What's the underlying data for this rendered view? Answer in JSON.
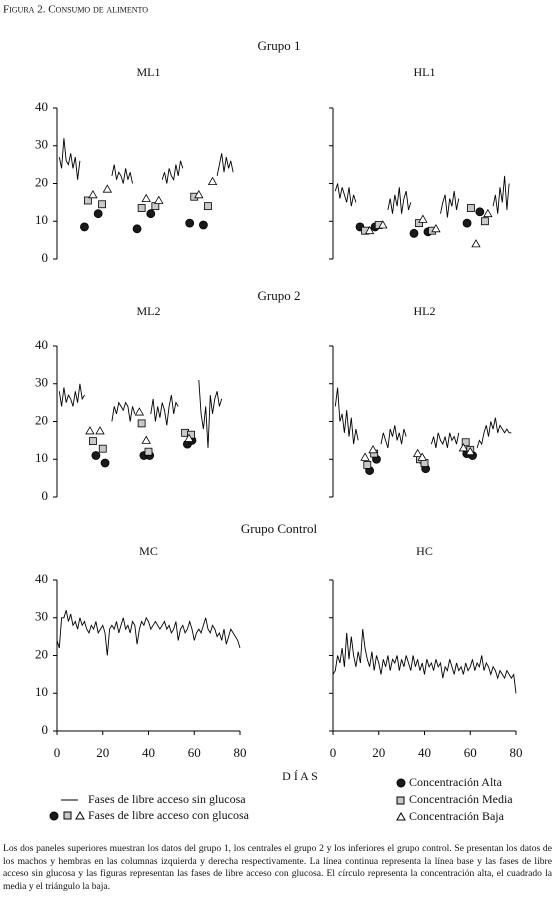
{
  "figure_title": "Figura 2. Consumo de alimento",
  "groups": [
    "Grupo 1",
    "Grupo 2",
    "Grupo Control"
  ],
  "x_label": "D Í A S",
  "legend": {
    "line": "Fases de libre acceso sin glucosa",
    "markers": "Fases de libre acceso con glucosa",
    "alta": "Concentración Alta",
    "media": "Concentración Media",
    "baja": "Concentración Baja"
  },
  "caption": "Los dos paneles superiores muestran los datos del grupo 1, los centrales el grupo 2 y los inferiores el grupo control. Se presentan los datos de los machos y hembras en las columnas izquierda y derecha respectivamente. La línea continua representa la línea base y las fases de libre acceso sin glucosa y las figuras representan las fases de libre acceso con glucosa. El círculo representa la concentración alta, el cuadrado la media y el triángulo la baja.",
  "chart_data": [
    {
      "type": "line",
      "title": "ML1",
      "xlim": [
        0,
        80
      ],
      "ylim": [
        0,
        40
      ],
      "yticks": [
        0,
        10,
        20,
        30,
        40
      ],
      "color": "#000000",
      "x": [
        1,
        2,
        3,
        4,
        5,
        6,
        7,
        8,
        9,
        10,
        null,
        24,
        25,
        26,
        27,
        28,
        29,
        30,
        31,
        32,
        33,
        null,
        46,
        47,
        48,
        49,
        50,
        51,
        52,
        53,
        54,
        55,
        null,
        70,
        71,
        72,
        73,
        74,
        75,
        76,
        77
      ],
      "values": [
        27,
        24,
        32,
        26,
        25,
        28,
        24,
        27,
        21,
        26,
        null,
        22,
        25,
        21,
        23,
        22,
        20,
        24,
        21,
        23,
        20,
        null,
        21,
        23,
        20,
        24,
        22,
        21,
        25,
        22,
        26,
        24,
        null,
        22,
        25,
        28,
        23,
        27,
        24,
        26,
        23
      ],
      "markers": [
        {
          "marker": "circle",
          "color": "#1a1a1a",
          "x": [
            12,
            18,
            35,
            41,
            58,
            64
          ],
          "values": [
            8.5,
            12,
            8,
            12,
            9.5,
            9
          ]
        },
        {
          "marker": "square",
          "color": "#c8c8c8",
          "x": [
            13.5,
            19.7,
            37,
            43,
            60,
            66
          ],
          "values": [
            15.5,
            14.5,
            13.5,
            14,
            16.5,
            14
          ]
        },
        {
          "marker": "triangle",
          "color": "#ffffff",
          "x": [
            15.7,
            22,
            39,
            44.5,
            62,
            68
          ],
          "values": [
            17,
            18.5,
            16,
            15.5,
            17,
            20.5
          ]
        }
      ]
    },
    {
      "type": "line",
      "title": "HL1",
      "xlim": [
        0,
        80
      ],
      "ylim": [
        0,
        40
      ],
      "yticks": [
        0,
        10,
        20,
        30,
        40
      ],
      "color": "#000000",
      "x": [
        1,
        2,
        3,
        4,
        5,
        6,
        7,
        8,
        9,
        10,
        null,
        24,
        25,
        26,
        27,
        28,
        29,
        30,
        31,
        32,
        33,
        34,
        null,
        47,
        48,
        49,
        50,
        51,
        52,
        53,
        54,
        55,
        null,
        70,
        71,
        72,
        73,
        74,
        75,
        76,
        77
      ],
      "values": [
        18,
        20,
        16,
        19,
        17,
        15,
        19,
        14,
        17,
        15,
        null,
        13,
        16,
        12,
        17,
        14,
        19,
        12,
        16,
        18,
        13,
        15,
        null,
        12,
        15,
        17,
        11,
        16,
        14,
        18,
        13,
        16,
        null,
        14,
        17,
        12,
        19,
        15,
        22,
        13,
        20
      ],
      "markers": [
        {
          "marker": "circle",
          "color": "#1a1a1a",
          "x": [
            11.8,
            18.4,
            35.4,
            41.5,
            58.6,
            64.2
          ],
          "values": [
            8.5,
            8.5,
            6.8,
            7.2,
            9.5,
            12.5
          ]
        },
        {
          "marker": "square",
          "color": "#c8c8c8",
          "x": [
            14,
            20,
            37.6,
            43.3,
            60.3,
            66.4
          ],
          "values": [
            7.5,
            9,
            9.5,
            7.5,
            13.5,
            10
          ]
        },
        {
          "marker": "triangle",
          "color": "#ffffff",
          "x": [
            16,
            21.8,
            39.3,
            45,
            62.5,
            67.7
          ],
          "values": [
            7.5,
            9,
            10.5,
            8,
            4,
            12
          ]
        }
      ]
    },
    {
      "type": "line",
      "title": "ML2",
      "xlim": [
        0,
        80
      ],
      "ylim": [
        0,
        40
      ],
      "yticks": [
        0,
        10,
        20,
        30,
        40
      ],
      "color": "#000000",
      "x": [
        1,
        2,
        3,
        4,
        5,
        6,
        7,
        8,
        9,
        10,
        11,
        12,
        null,
        24,
        25,
        26,
        27,
        28,
        29,
        30,
        31,
        32,
        33,
        34,
        null,
        41,
        42,
        43,
        44,
        45,
        46,
        47,
        48,
        49,
        50,
        51,
        52,
        53,
        null,
        62,
        63,
        64,
        65,
        66,
        67,
        68,
        69,
        70,
        71,
        72
      ],
      "values": [
        28,
        24,
        29,
        25,
        27,
        26,
        24,
        28,
        25,
        30,
        26,
        27,
        null,
        20,
        24,
        22,
        25,
        24,
        23,
        25,
        24,
        20,
        24,
        22,
        null,
        22,
        26,
        20,
        24,
        21,
        25,
        23,
        19,
        24,
        27,
        22,
        25,
        24,
        null,
        31,
        22,
        18,
        24,
        13,
        27,
        22,
        26,
        28,
        24,
        26
      ],
      "markers": [
        {
          "marker": "circle",
          "color": "#1a1a1a",
          "x": [
            17,
            21,
            38,
            40.5,
            57,
            59
          ],
          "values": [
            11,
            9,
            11,
            11,
            14,
            15
          ]
        },
        {
          "marker": "square",
          "color": "#c8c8c8",
          "x": [
            15.7,
            20,
            37,
            40,
            56,
            58.6
          ],
          "values": [
            14.8,
            12.8,
            19.5,
            12,
            17,
            16.5
          ]
        },
        {
          "marker": "triangle",
          "color": "#ffffff",
          "x": [
            14.4,
            18.8,
            36,
            39,
            57.7
          ],
          "values": [
            17.5,
            17.5,
            22.5,
            15,
            15.5
          ]
        }
      ]
    },
    {
      "type": "line",
      "title": "HL2",
      "xlim": [
        0,
        80
      ],
      "ylim": [
        0,
        40
      ],
      "yticks": [
        0,
        10,
        20,
        30,
        40
      ],
      "color": "#000000",
      "x": [
        1,
        2,
        3,
        4,
        5,
        6,
        7,
        8,
        9,
        10,
        11,
        null,
        21,
        22,
        23,
        24,
        25,
        26,
        27,
        28,
        29,
        30,
        31,
        32,
        null,
        43,
        44,
        45,
        46,
        47,
        48,
        49,
        50,
        51,
        52,
        53,
        54,
        55,
        null,
        63,
        64,
        65,
        66,
        67,
        68,
        69,
        70,
        71,
        72,
        73,
        74,
        75,
        76,
        77,
        78
      ],
      "values": [
        24,
        29,
        20,
        22,
        17,
        23,
        16,
        21,
        14,
        18,
        15,
        null,
        14,
        17,
        15,
        13,
        18,
        16,
        19,
        15,
        17,
        14,
        18,
        16,
        null,
        14,
        16,
        13,
        17,
        15,
        14,
        16,
        13,
        17,
        15,
        16,
        14,
        17,
        null,
        13,
        15,
        14,
        17,
        19,
        16,
        20,
        18,
        21,
        17,
        19,
        18,
        17,
        18,
        17,
        17
      ],
      "markers": [
        {
          "marker": "circle",
          "color": "#1a1a1a",
          "x": [
            16,
            19,
            38.5,
            40.5,
            58.5,
            61
          ],
          "values": [
            7,
            10,
            10,
            7.5,
            11.5,
            11
          ]
        },
        {
          "marker": "square",
          "color": "#c8c8c8",
          "x": [
            15,
            18,
            38,
            40,
            58,
            60
          ],
          "values": [
            8.5,
            11.5,
            10,
            9,
            14.5,
            12.5
          ]
        },
        {
          "marker": "triangle",
          "color": "#ffffff",
          "x": [
            14,
            17.5,
            37,
            39,
            57,
            60
          ],
          "values": [
            10.5,
            12.5,
            11.5,
            10.5,
            13,
            12
          ]
        }
      ]
    },
    {
      "type": "line",
      "title": "MC",
      "xlim": [
        0,
        80
      ],
      "ylim": [
        0,
        40
      ],
      "yticks": [
        0,
        10,
        20,
        30,
        40
      ],
      "xticks": [
        0,
        20,
        40,
        60,
        80
      ],
      "color": "#000000",
      "x": [
        0,
        1,
        2,
        3,
        4,
        5,
        6,
        7,
        8,
        9,
        10,
        11,
        12,
        13,
        14,
        15,
        16,
        17,
        18,
        19,
        20,
        21,
        22,
        23,
        24,
        25,
        26,
        27,
        28,
        29,
        30,
        31,
        32,
        33,
        34,
        35,
        36,
        37,
        38,
        39,
        40,
        41,
        42,
        43,
        44,
        45,
        46,
        47,
        48,
        49,
        50,
        51,
        52,
        53,
        54,
        55,
        56,
        57,
        58,
        59,
        60,
        61,
        62,
        63,
        64,
        65,
        66,
        67,
        68,
        69,
        70,
        71,
        72,
        73,
        74,
        75,
        76,
        77,
        78,
        79,
        80
      ],
      "values": [
        24,
        22,
        30,
        30,
        32,
        29,
        31,
        28,
        29,
        27,
        30,
        28,
        29,
        27,
        26,
        28,
        27,
        29,
        26,
        27,
        28,
        26,
        20,
        27,
        28,
        27,
        29,
        26,
        28,
        30,
        27,
        28,
        26,
        29,
        28,
        23,
        27,
        29,
        28,
        30,
        29,
        27,
        28,
        29,
        28,
        27,
        28,
        29,
        27,
        28,
        26,
        27,
        29,
        24,
        27,
        28,
        26,
        27,
        29,
        27,
        24,
        26,
        27,
        26,
        28,
        30,
        27,
        26,
        28,
        27,
        25,
        26,
        24,
        27,
        23,
        25,
        27,
        26,
        25,
        24,
        22
      ],
      "markers": []
    },
    {
      "type": "line",
      "title": "HC",
      "xlim": [
        0,
        80
      ],
      "ylim": [
        0,
        40
      ],
      "yticks": [
        0,
        10,
        20,
        30,
        40
      ],
      "xticks": [
        0,
        20,
        40,
        60,
        80
      ],
      "color": "#000000",
      "x": [
        0,
        1,
        2,
        3,
        4,
        5,
        6,
        7,
        8,
        9,
        10,
        11,
        12,
        13,
        14,
        15,
        16,
        17,
        18,
        19,
        20,
        21,
        22,
        23,
        24,
        25,
        26,
        27,
        28,
        29,
        30,
        31,
        32,
        33,
        34,
        35,
        36,
        37,
        38,
        39,
        40,
        41,
        42,
        43,
        44,
        45,
        46,
        47,
        48,
        49,
        50,
        51,
        52,
        53,
        54,
        55,
        56,
        57,
        58,
        59,
        60,
        61,
        62,
        63,
        64,
        65,
        66,
        67,
        68,
        69,
        70,
        71,
        72,
        73,
        74,
        75,
        76,
        77,
        78,
        79,
        80
      ],
      "values": [
        15,
        16,
        20,
        18,
        22,
        17,
        26,
        19,
        25,
        20,
        17,
        21,
        18,
        27,
        22,
        19,
        17,
        21,
        16,
        20,
        18,
        15,
        19,
        17,
        20,
        16,
        19,
        18,
        20,
        16,
        19,
        17,
        20,
        18,
        16,
        20,
        17,
        19,
        16,
        18,
        15,
        19,
        17,
        18,
        16,
        19,
        17,
        18,
        14,
        17,
        16,
        19,
        17,
        15,
        18,
        16,
        17,
        15,
        18,
        16,
        17,
        19,
        16,
        18,
        17,
        20,
        16,
        18,
        17,
        15,
        17,
        16,
        14,
        16,
        15,
        14,
        16,
        15,
        14,
        15,
        10
      ],
      "markers": []
    }
  ]
}
